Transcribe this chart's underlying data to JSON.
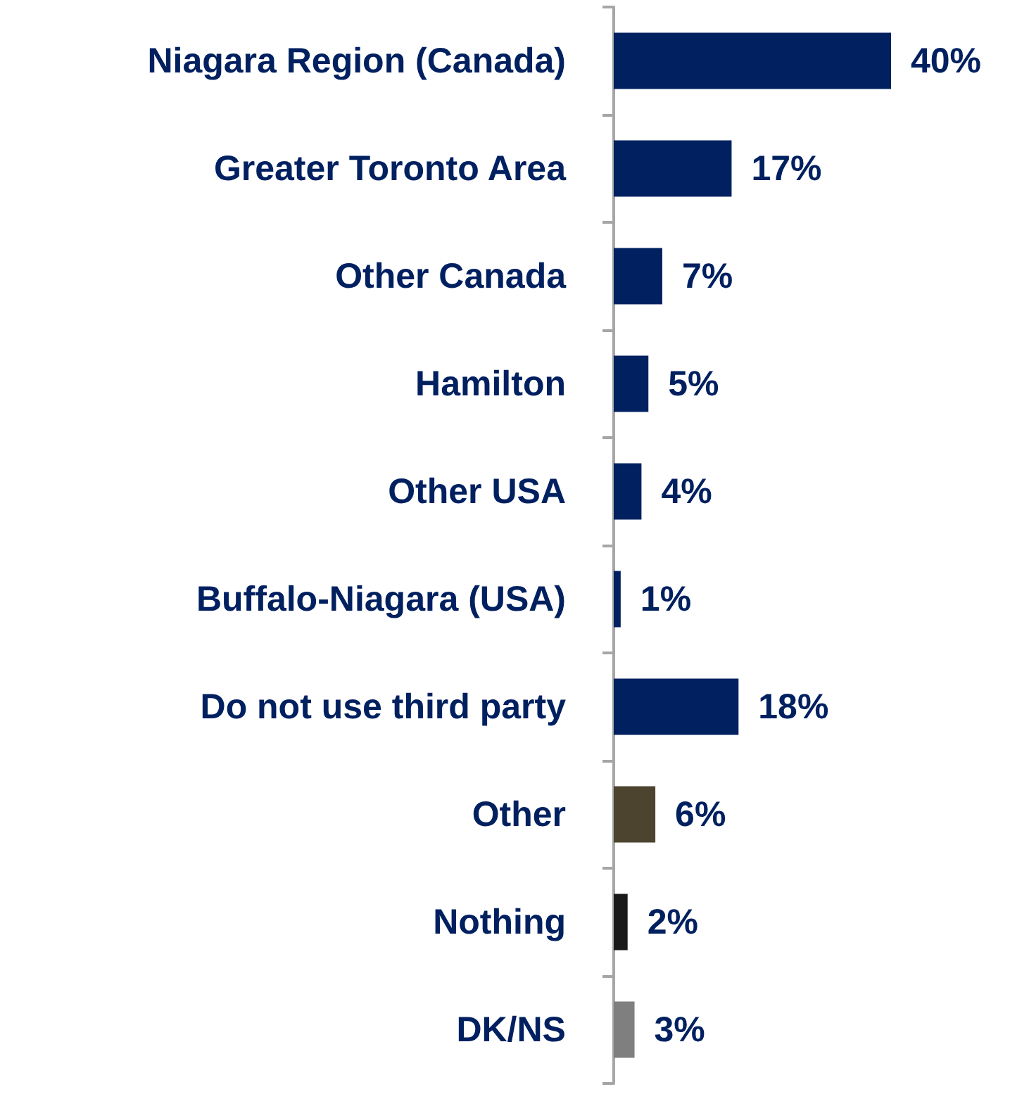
{
  "chart_data": {
    "type": "bar",
    "orientation": "horizontal",
    "categories": [
      "Niagara Region (Canada)",
      "Greater Toronto Area",
      "Other Canada",
      "Hamilton",
      "Other USA",
      "Buffalo-Niagara (USA)",
      "Do not use third party",
      "Other",
      "Nothing",
      "DK/NS"
    ],
    "values": [
      40,
      17,
      7,
      5,
      4,
      1,
      18,
      6,
      2,
      3
    ],
    "colors": [
      "#002060",
      "#002060",
      "#002060",
      "#002060",
      "#002060",
      "#002060",
      "#002060",
      "#4d4430",
      "#1a1a1a",
      "#7f7f7f"
    ],
    "value_labels": [
      "40%",
      "17%",
      "7%",
      "5%",
      "4%",
      "1%",
      "18%",
      "6%",
      "2%",
      "3%"
    ]
  }
}
